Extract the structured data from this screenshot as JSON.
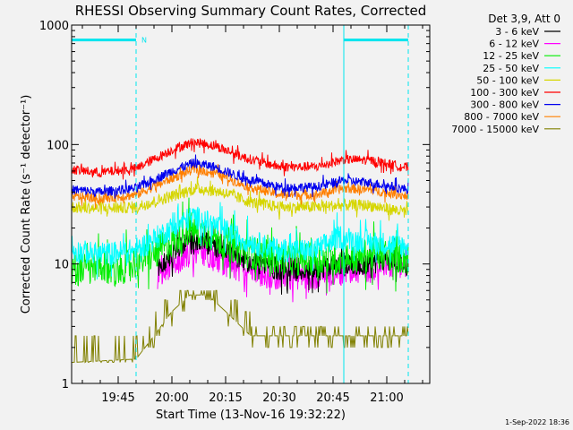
{
  "chart_data": {
    "type": "line",
    "title": "RHESSI Observing Summary Count Rates, Corrected",
    "xlabel": "Start Time (13-Nov-16 19:32:22)",
    "ylabel": "Corrected Count Rate (s⁻¹ detector⁻¹)",
    "y_scale": "log",
    "ylim": [
      1,
      1000
    ],
    "yticks": [
      1,
      10,
      100,
      1000
    ],
    "ytick_labels": [
      "1",
      "10",
      "100",
      "1000"
    ],
    "x_start": "19:32",
    "x_end": "21:12",
    "xticks": [
      "19:45",
      "20:00",
      "20:15",
      "20:30",
      "20:45",
      "21:00"
    ],
    "legend_placement": "right",
    "legend_header": "Det 3,9, Att 0",
    "timestamp": "1-Sep-2022 18:36",
    "annotations": [
      {
        "type": "bar",
        "label": "N",
        "from": "19:32",
        "to": "19:50",
        "y": 750,
        "color": "#00e5ee"
      },
      {
        "type": "bar",
        "label": "",
        "from": "20:48",
        "to": "21:06",
        "y": 750,
        "color": "#00e5ee"
      },
      {
        "type": "vline",
        "at": "19:32",
        "style": "dashed",
        "color": "#00e5ee"
      },
      {
        "type": "vline",
        "at": "19:50",
        "style": "dashed",
        "color": "#00e5ee"
      },
      {
        "type": "vline",
        "at": "20:48",
        "style": "solid",
        "color": "#00e5ee"
      },
      {
        "type": "vline",
        "at": "21:06",
        "style": "dashed",
        "color": "#00e5ee"
      }
    ],
    "series": [
      {
        "name": "3 - 6 keV",
        "color": "#000000",
        "noise": 0.1,
        "start": "19:56",
        "points": [
          [
            "19:56",
            9
          ],
          [
            "20:02",
            14
          ],
          [
            "20:07",
            16
          ],
          [
            "20:12",
            14
          ],
          [
            "20:20",
            11
          ],
          [
            "20:30",
            9
          ],
          [
            "20:40",
            9
          ],
          [
            "20:48",
            10
          ],
          [
            "20:55",
            10
          ],
          [
            "21:00",
            11
          ],
          [
            "21:06",
            10
          ]
        ]
      },
      {
        "name": "6 - 12 keV",
        "color": "#ff00ff",
        "noise": 0.12,
        "start": "19:56",
        "points": [
          [
            "19:56",
            8
          ],
          [
            "20:02",
            11
          ],
          [
            "20:07",
            13
          ],
          [
            "20:12",
            11
          ],
          [
            "20:20",
            9
          ],
          [
            "20:30",
            8
          ],
          [
            "20:40",
            8
          ],
          [
            "20:48",
            9
          ],
          [
            "20:55",
            9
          ],
          [
            "21:00",
            10
          ],
          [
            "21:06",
            9
          ]
        ]
      },
      {
        "name": "12 - 25 keV",
        "color": "#00ee00",
        "noise": 0.14,
        "points": [
          [
            "19:32",
            9
          ],
          [
            "19:45",
            9
          ],
          [
            "19:55",
            12
          ],
          [
            "20:05",
            20
          ],
          [
            "20:10",
            18
          ],
          [
            "20:20",
            13
          ],
          [
            "20:30",
            11
          ],
          [
            "20:40",
            11
          ],
          [
            "20:48",
            11
          ],
          [
            "20:55",
            12
          ],
          [
            "21:00",
            12
          ],
          [
            "21:06",
            11
          ]
        ]
      },
      {
        "name": "25 - 50 keV",
        "color": "#00ffff",
        "noise": 0.1,
        "points": [
          [
            "19:32",
            13
          ],
          [
            "19:40",
            12
          ],
          [
            "19:50",
            13
          ],
          [
            "20:00",
            20
          ],
          [
            "20:06",
            25
          ],
          [
            "20:12",
            21
          ],
          [
            "20:20",
            16
          ],
          [
            "20:30",
            13
          ],
          [
            "20:40",
            13
          ],
          [
            "20:47",
            17
          ],
          [
            "20:50",
            16
          ],
          [
            "20:58",
            15
          ],
          [
            "21:06",
            14
          ]
        ]
      },
      {
        "name": "50 - 100 keV",
        "color": "#d6d600",
        "noise": 0.05,
        "points": [
          [
            "19:32",
            30
          ],
          [
            "19:40",
            29
          ],
          [
            "19:50",
            30
          ],
          [
            "20:00",
            37
          ],
          [
            "20:07",
            43
          ],
          [
            "20:14",
            40
          ],
          [
            "20:22",
            33
          ],
          [
            "20:30",
            30
          ],
          [
            "20:40",
            30
          ],
          [
            "20:48",
            31
          ],
          [
            "20:55",
            31
          ],
          [
            "21:06",
            27
          ]
        ]
      },
      {
        "name": "100 - 300 keV",
        "color": "#ff0000",
        "noise": 0.04,
        "points": [
          [
            "19:32",
            62
          ],
          [
            "19:40",
            58
          ],
          [
            "19:50",
            63
          ],
          [
            "20:00",
            90
          ],
          [
            "20:06",
            105
          ],
          [
            "20:12",
            98
          ],
          [
            "20:20",
            78
          ],
          [
            "20:30",
            65
          ],
          [
            "20:40",
            65
          ],
          [
            "20:48",
            75
          ],
          [
            "20:55",
            74
          ],
          [
            "21:06",
            64
          ]
        ]
      },
      {
        "name": "300 - 800 keV",
        "color": "#0000ee",
        "noise": 0.04,
        "points": [
          [
            "19:32",
            42
          ],
          [
            "19:40",
            40
          ],
          [
            "19:50",
            43
          ],
          [
            "20:00",
            60
          ],
          [
            "20:06",
            70
          ],
          [
            "20:12",
            65
          ],
          [
            "20:20",
            52
          ],
          [
            "20:30",
            44
          ],
          [
            "20:40",
            44
          ],
          [
            "20:48",
            50
          ],
          [
            "20:55",
            48
          ],
          [
            "21:06",
            42
          ]
        ]
      },
      {
        "name": "800 - 7000 keV",
        "color": "#ff7f00",
        "noise": 0.04,
        "points": [
          [
            "19:32",
            37
          ],
          [
            "19:40",
            35
          ],
          [
            "19:50",
            38
          ],
          [
            "20:00",
            52
          ],
          [
            "20:06",
            62
          ],
          [
            "20:12",
            58
          ],
          [
            "20:20",
            46
          ],
          [
            "20:30",
            38
          ],
          [
            "20:40",
            38
          ],
          [
            "20:48",
            43
          ],
          [
            "20:55",
            42
          ],
          [
            "21:06",
            37
          ]
        ]
      },
      {
        "name": "7000 - 15000 keV",
        "color": "#808000",
        "noise": 0,
        "step": true,
        "points": [
          [
            "19:32",
            1.5
          ],
          [
            "19:50",
            1.6
          ],
          [
            "19:55",
            2.5
          ],
          [
            "20:00",
            4
          ],
          [
            "20:05",
            5.5
          ],
          [
            "20:10",
            5.5
          ],
          [
            "20:15",
            4
          ],
          [
            "20:22",
            2.5
          ],
          [
            "20:40",
            2.5
          ],
          [
            "21:06",
            2.5
          ]
        ]
      }
    ]
  }
}
